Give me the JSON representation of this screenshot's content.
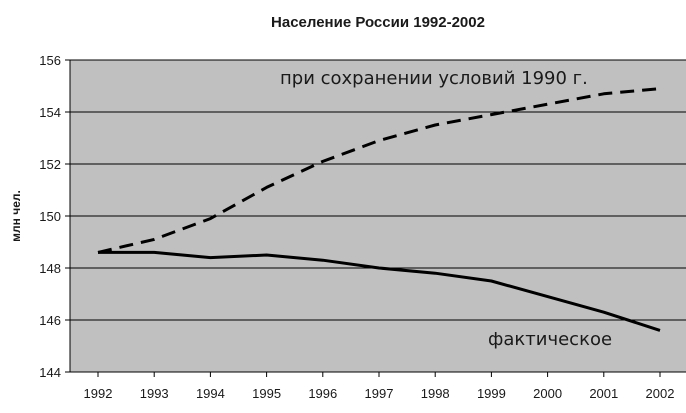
{
  "chart_data": {
    "type": "line",
    "title": "Население России 1992-2002",
    "xlabel": "",
    "ylabel": "млн чел.",
    "x": [
      1992,
      1993,
      1994,
      1995,
      1996,
      1997,
      1998,
      1999,
      2000,
      2001,
      2002
    ],
    "ylim": [
      144,
      156
    ],
    "yticks": [
      144,
      146,
      148,
      150,
      152,
      154,
      156
    ],
    "grid": true,
    "background": "#c0c0c0",
    "series": [
      {
        "name": "при сохранении условий 1990 г.",
        "style": "dashed",
        "color": "#000000",
        "values": [
          148.6,
          149.1,
          149.9,
          151.1,
          152.1,
          152.9,
          153.5,
          153.9,
          154.3,
          154.7,
          154.9
        ]
      },
      {
        "name": "фактическое",
        "style": "solid",
        "color": "#000000",
        "values": [
          148.6,
          148.6,
          148.4,
          148.5,
          148.3,
          148.0,
          147.8,
          147.5,
          146.9,
          146.3,
          145.6
        ]
      }
    ]
  }
}
